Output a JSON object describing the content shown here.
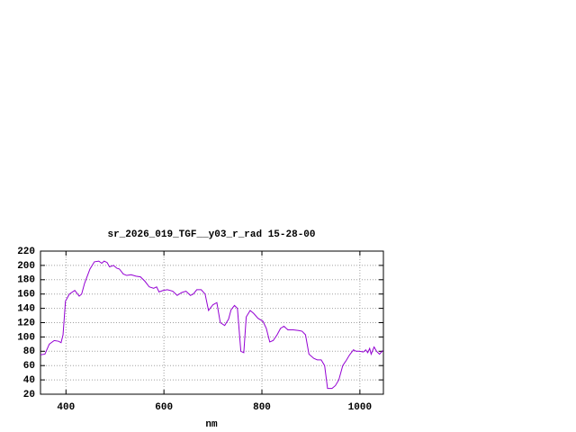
{
  "chart_data": {
    "type": "line",
    "title": "sr_2026_019_TGF__y03_r_rad 15-28-00",
    "x_label": "nm",
    "x": [
      348,
      357,
      366,
      376,
      385,
      390,
      394,
      399,
      407,
      418,
      427,
      432,
      438,
      449,
      458,
      467,
      473,
      478,
      484,
      489,
      497,
      504,
      509,
      517,
      524,
      533,
      543,
      552,
      561,
      570,
      579,
      585,
      590,
      598,
      607,
      618,
      627,
      636,
      645,
      654,
      660,
      667,
      676,
      684,
      691,
      700,
      708,
      715,
      724,
      732,
      737,
      744,
      750,
      757,
      763,
      768,
      776,
      783,
      792,
      802,
      809,
      816,
      823,
      831,
      838,
      845,
      853,
      864,
      875,
      882,
      889,
      896,
      906,
      913,
      921,
      928,
      934,
      943,
      950,
      957,
      965,
      972,
      979,
      987,
      992,
      999,
      1007,
      1012,
      1016,
      1020,
      1023,
      1029,
      1034,
      1040,
      1047
    ],
    "series": [
      {
        "color": "#9400d3",
        "values": [
          75,
          76,
          90,
          95,
          94,
          92,
          103,
          150,
          160,
          165,
          157,
          160,
          175,
          195,
          205,
          206,
          203,
          206,
          204,
          198,
          200,
          196,
          195,
          188,
          186,
          187,
          185,
          184,
          178,
          170,
          168,
          170,
          163,
          165,
          166,
          164,
          158,
          162,
          164,
          158,
          160,
          166,
          166,
          160,
          137,
          145,
          148,
          120,
          116,
          125,
          138,
          144,
          140,
          80,
          78,
          128,
          137,
          133,
          126,
          122,
          112,
          93,
          95,
          103,
          112,
          115,
          110,
          110,
          109,
          108,
          103,
          76,
          70,
          68,
          68,
          60,
          28,
          28,
          32,
          40,
          60,
          67,
          75,
          82,
          80,
          80,
          79,
          82,
          78,
          84,
          76,
          86,
          80,
          76,
          81
        ]
      }
    ],
    "xlim": [
      348,
      1048
    ],
    "ylim": [
      20,
      220
    ],
    "xticks": [
      400,
      600,
      800,
      1000
    ],
    "yticks": [
      20,
      40,
      60,
      80,
      100,
      120,
      140,
      160,
      180,
      200,
      220
    ],
    "grid": true
  }
}
